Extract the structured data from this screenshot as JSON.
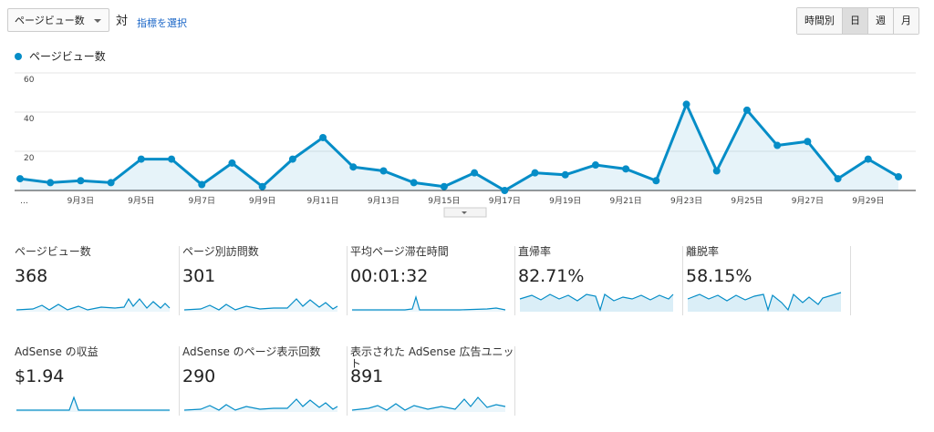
{
  "toolbar": {
    "metric_select": "ページビュー数",
    "vs": "対",
    "select_metric_link": "指標を選択",
    "period_buttons": [
      "時間別",
      "日",
      "週",
      "月"
    ]
  },
  "chart_data": {
    "type": "line",
    "categories": [
      "…",
      null,
      "9月3日",
      null,
      "9月5日",
      null,
      "9月7日",
      null,
      "9月9日",
      null,
      "9月11日",
      null,
      "9月13日",
      null,
      "9月15日",
      null,
      "9月17日",
      null,
      "9月19日",
      null,
      "9月21日",
      null,
      "9月23日",
      null,
      "9月25日",
      null,
      "9月27日",
      null,
      "9月29日",
      null
    ],
    "series": [
      {
        "name": "ページビュー数",
        "color": "#058dc7",
        "values": [
          6,
          4,
          5,
          4,
          16,
          16,
          3,
          14,
          2,
          16,
          27,
          12,
          10,
          4,
          2,
          9,
          0,
          9,
          8,
          13,
          11,
          5,
          44,
          10,
          41,
          23,
          25,
          6,
          16,
          7
        ]
      }
    ],
    "ylim": [
      0,
      60
    ],
    "yticks": [
      20,
      40,
      60
    ],
    "grid": true
  },
  "metrics": [
    {
      "label": "ページビュー数",
      "value": "368"
    },
    {
      "label": "ページ別訪問数",
      "value": "301"
    },
    {
      "label": "平均ページ滞在時間",
      "value": "00:01:32"
    },
    {
      "label": "直帰率",
      "value": "82.71%"
    },
    {
      "label": "離脱率",
      "value": "58.15%"
    },
    {
      "label": "AdSense の収益",
      "value": "$1.94"
    },
    {
      "label": "AdSense のページ表示回数",
      "value": "290"
    },
    {
      "label": "表示された AdSense 広告ユニット",
      "value": "891"
    }
  ]
}
